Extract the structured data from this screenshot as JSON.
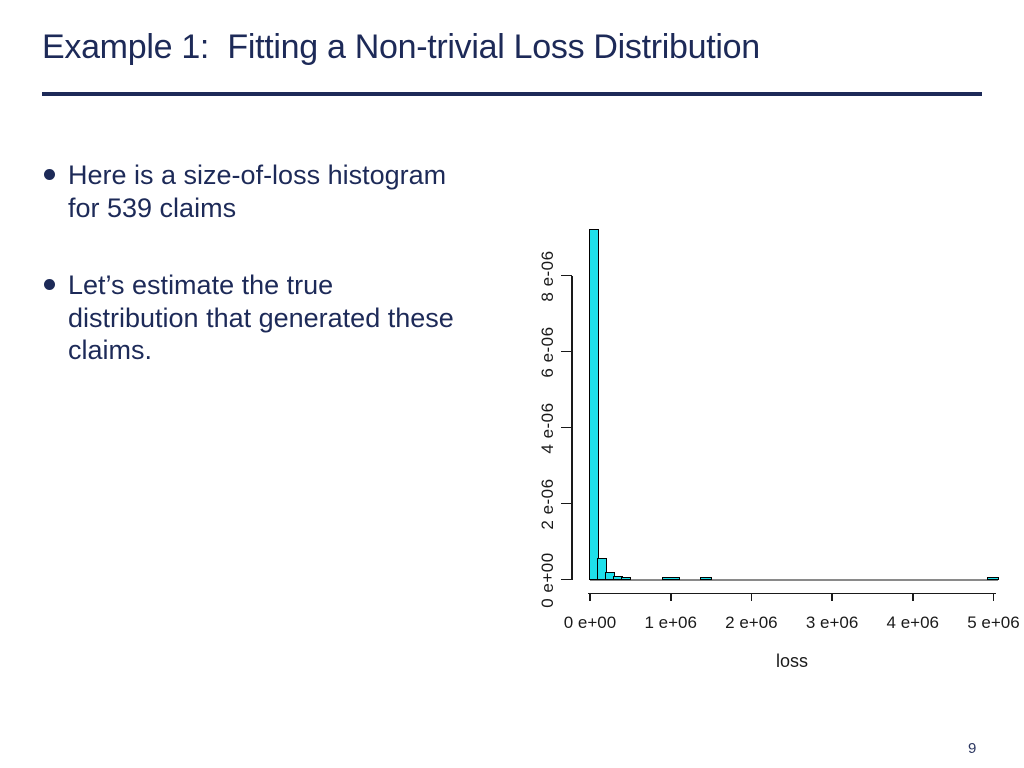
{
  "slide": {
    "title": "Example 1:  Fitting a Non-trivial Loss Distribution",
    "page_number": "9",
    "bullets": [
      {
        "lines": [
          "Here is a size-of-loss histogram",
          "for 539 claims"
        ]
      },
      {
        "lines": [
          "Let’s estimate the true",
          "distribution that generated these",
          "claims."
        ]
      }
    ]
  },
  "colors": {
    "accent_navy": "#1d2a58",
    "bar_fill": "#1ee0ea",
    "bar_stroke": "#000000",
    "axis": "#1a1a1a",
    "baseline_gray": "#8a8a8a"
  },
  "chart_data": {
    "type": "bar",
    "title": "",
    "xlabel": "loss",
    "ylabel": "",
    "grid": false,
    "legend": false,
    "xlim": [
      0,
      5400000
    ],
    "ylim": [
      0,
      9.3e-06
    ],
    "bin_width": 100000,
    "x_tick_values": [
      0,
      1000000,
      2000000,
      3000000,
      4000000,
      5000000
    ],
    "x_tick_labels": [
      "0 e+00",
      "1 e+06",
      "2 e+06",
      "3 e+06",
      "4 e+06",
      "5 e+06"
    ],
    "y_tick_values": [
      0,
      2e-06,
      4e-06,
      6e-06,
      8e-06
    ],
    "y_tick_labels": [
      "0 e+00",
      "2 e-06",
      "4 e-06",
      "6 e-06",
      "8 e-06"
    ],
    "bins": [
      {
        "from": 0,
        "to": 100000,
        "density": 9.2e-06
      },
      {
        "from": 100000,
        "to": 200000,
        "density": 5.5e-07
      },
      {
        "from": 200000,
        "to": 300000,
        "density": 1.8e-07
      },
      {
        "from": 300000,
        "to": 400000,
        "density": 7e-08
      },
      {
        "from": 400000,
        "to": 500000,
        "density": 4e-08
      },
      {
        "from": 900000,
        "to": 1100000,
        "density": 3e-08
      },
      {
        "from": 1380000,
        "to": 1500000,
        "density": 3e-08
      },
      {
        "from": 4930000,
        "to": 5060000,
        "density": 3e-08
      }
    ],
    "baseline_extent": [
      0,
      5060000
    ]
  }
}
